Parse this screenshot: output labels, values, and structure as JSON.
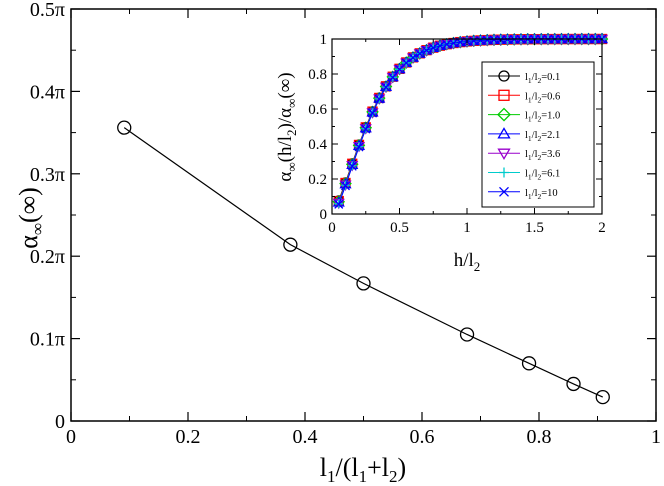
{
  "chart_data": [
    {
      "type": "line",
      "role": "main",
      "xlabel": "l1/(l1+l2)",
      "ylabel": "α∞(∞)",
      "xlim": [
        0,
        1
      ],
      "ylim": [
        0,
        0.5
      ],
      "x_ticks": [
        0,
        0.2,
        0.4,
        0.6,
        0.8,
        1
      ],
      "x_tick_labels": [
        "0",
        "0.2",
        "0.4",
        "0.6",
        "0.8",
        "1"
      ],
      "y_ticks": [
        0,
        0.1,
        0.2,
        0.3,
        0.4,
        0.5
      ],
      "y_tick_labels": [
        "0",
        "0.1π",
        "0.2π",
        "0.3π",
        "0.4π",
        "0.5π"
      ],
      "y_units": "π",
      "series": [
        {
          "name": "α∞(∞)",
          "marker": "circle",
          "color": "#000000",
          "x": [
            0.091,
            0.375,
            0.5,
            0.677,
            0.783,
            0.859,
            0.909
          ],
          "y": [
            0.356,
            0.214,
            0.167,
            0.105,
            0.07,
            0.045,
            0.029
          ]
        }
      ]
    },
    {
      "type": "line",
      "role": "inset",
      "xlabel": "h/l2",
      "ylabel": "α∞(h/l2)/α∞(∞)",
      "xlim": [
        0,
        2
      ],
      "ylim": [
        0,
        1
      ],
      "x_ticks": [
        0,
        0.5,
        1,
        1.5,
        2
      ],
      "x_tick_labels": [
        "0",
        "0.5",
        "1",
        "1.5",
        "2"
      ],
      "y_ticks": [
        0,
        0.2,
        0.4,
        0.6,
        0.8,
        1
      ],
      "y_tick_labels": [
        "0",
        "0.2",
        "0.4",
        "0.6",
        "0.8",
        "1"
      ],
      "legend_position": "right",
      "x": [
        0.05,
        0.1,
        0.15,
        0.2,
        0.25,
        0.3,
        0.35,
        0.4,
        0.45,
        0.5,
        0.55,
        0.6,
        0.65,
        0.7,
        0.75,
        0.8,
        0.85,
        0.9,
        0.95,
        1.0,
        1.05,
        1.1,
        1.15,
        1.2,
        1.25,
        1.3,
        1.35,
        1.4,
        1.45,
        1.5,
        1.55,
        1.6,
        1.65,
        1.7,
        1.75,
        1.8,
        1.85,
        1.9,
        1.95,
        2.0
      ],
      "series": [
        {
          "name": "l1/l2=0.1",
          "label_l": "l",
          "label_sub1": "1",
          "label_mid": "/l",
          "label_sub2": "2",
          "label_value": "=0.1",
          "marker": "circle",
          "color": "#000000",
          "shift": 0.0
        },
        {
          "name": "l1/l2=0.6",
          "label_l": "l",
          "label_sub1": "1",
          "label_mid": "/l",
          "label_sub2": "2",
          "label_value": "=0.6",
          "marker": "square",
          "color": "#ff0000",
          "shift": 0.004
        },
        {
          "name": "l1/l2=1.0",
          "label_l": "l",
          "label_sub1": "1",
          "label_mid": "/l",
          "label_sub2": "2",
          "label_value": "=1.0",
          "marker": "diamond",
          "color": "#00cc00",
          "shift": 0.008
        },
        {
          "name": "l1/l2=2.1",
          "label_l": "l",
          "label_sub1": "1",
          "label_mid": "/l",
          "label_sub2": "2",
          "label_value": "=2.1",
          "marker": "triangle-up",
          "color": "#0000ff",
          "shift": 0.012
        },
        {
          "name": "l1/l2=3.6",
          "label_l": "l",
          "label_sub1": "1",
          "label_mid": "/l",
          "label_sub2": "2",
          "label_value": "=3.6",
          "marker": "triangle-down",
          "color": "#9900cc",
          "shift": 0.016
        },
        {
          "name": "l1/l2=6.1",
          "label_l": "l",
          "label_sub1": "1",
          "label_mid": "/l",
          "label_sub2": "2",
          "label_value": "=6.1",
          "marker": "plus",
          "color": "#00cccc",
          "shift": 0.02
        },
        {
          "name": "l1/l2=10",
          "label_l": "l",
          "label_sub1": "1",
          "label_mid": "/l",
          "label_sub2": "2",
          "label_value": "=10",
          "marker": "x",
          "color": "#0000ff",
          "shift": 0.024
        }
      ]
    }
  ]
}
